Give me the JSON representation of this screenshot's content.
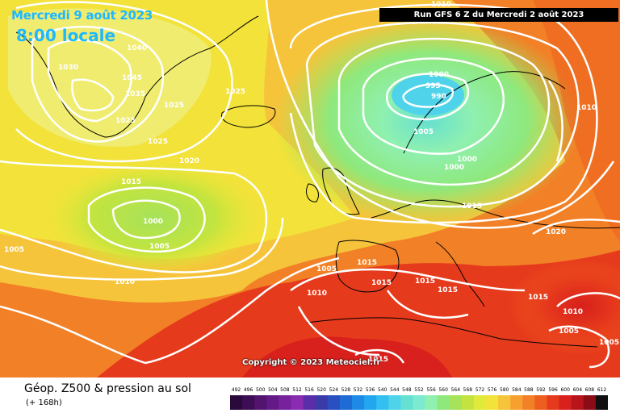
{
  "header": {
    "date": "Mercredi 9 août 2023",
    "time": "8:00 locale",
    "run": "Run GFS 6 Z du Mercredi 2 août 2023"
  },
  "copyright": "Copyright © 2023 Meteociel.fr",
  "footer": {
    "title": "Géop. Z500 & pression au sol",
    "subtitle": "(+ 168h)"
  },
  "scale": {
    "ticks": [
      "492",
      "496",
      "500",
      "504",
      "508",
      "512",
      "516",
      "520",
      "524",
      "528",
      "532",
      "536",
      "540",
      "544",
      "548",
      "552",
      "556",
      "560",
      "564",
      "568",
      "572",
      "576",
      "580",
      "584",
      "588",
      "592",
      "596",
      "600",
      "604",
      "608",
      "612"
    ],
    "colors": [
      "#2a0a3a",
      "#3d0d55",
      "#52146e",
      "#641a86",
      "#77229c",
      "#8a2cb2",
      "#5a2ea8",
      "#3a3aa8",
      "#2850c0",
      "#1f6bd6",
      "#1d8ae6",
      "#23a6ee",
      "#33bff0",
      "#4fd3ea",
      "#66e0d0",
      "#7cead0",
      "#8ff0b0",
      "#8fe87c",
      "#a6e25a",
      "#c3e43e",
      "#e0ea3a",
      "#f2e23a",
      "#f6c43a",
      "#f6a030",
      "#f28026",
      "#ee5e1e",
      "#e63a1c",
      "#d8201c",
      "#b8141c",
      "#8a0c16",
      "#101010"
    ]
  },
  "pressure_labels": [
    "1010",
    "1030",
    "1040",
    "1045",
    "1035",
    "1025",
    "1025",
    "1025",
    "1025",
    "1020",
    "1015",
    "1000",
    "1005",
    "1005",
    "1010",
    "1000",
    "995",
    "990",
    "1005",
    "1000",
    "1000",
    "1015",
    "1010",
    "1020",
    "1015",
    "1015",
    "1015",
    "1015",
    "1010",
    "1015",
    "1010",
    "1005",
    "1005",
    "1015",
    "1005"
  ]
}
